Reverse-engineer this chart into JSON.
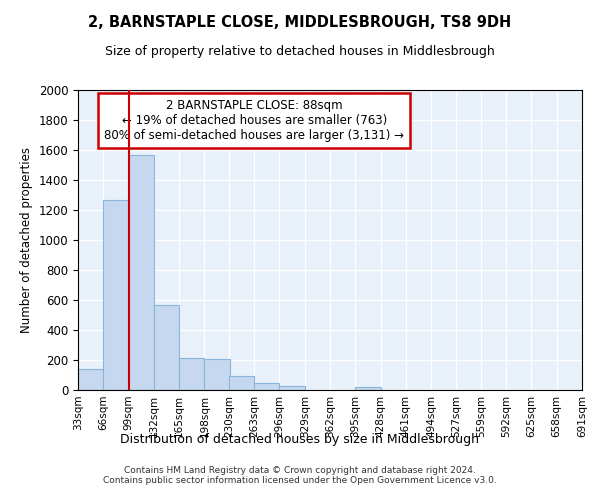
{
  "title": "2, BARNSTAPLE CLOSE, MIDDLESBROUGH, TS8 9DH",
  "subtitle": "Size of property relative to detached houses in Middlesbrough",
  "xlabel": "Distribution of detached houses by size in Middlesbrough",
  "ylabel": "Number of detached properties",
  "bar_color": "#c5d8f0",
  "bar_edge_color": "#8ab4d8",
  "background_color": "#e8f0fa",
  "grid_color": "#ffffff",
  "annotation_box_color": "#cc0000",
  "property_line_x": 99,
  "property_line_color": "#cc0000",
  "annotation_text": "2 BARNSTAPLE CLOSE: 88sqm\n← 19% of detached houses are smaller (763)\n80% of semi-detached houses are larger (3,131) →",
  "footer_text": "Contains HM Land Registry data © Crown copyright and database right 2024.\nContains public sector information licensed under the Open Government Licence v3.0.",
  "bin_edges": [
    33,
    66,
    99,
    132,
    165,
    198,
    230,
    263,
    296,
    329,
    362,
    395,
    428,
    461,
    494,
    527,
    559,
    592,
    625,
    658,
    691
  ],
  "bin_labels": [
    "33sqm",
    "66sqm",
    "99sqm",
    "132sqm",
    "165sqm",
    "198sqm",
    "230sqm",
    "263sqm",
    "296sqm",
    "329sqm",
    "362sqm",
    "395sqm",
    "428sqm",
    "461sqm",
    "494sqm",
    "527sqm",
    "559sqm",
    "592sqm",
    "625sqm",
    "658sqm",
    "691sqm"
  ],
  "counts": [
    140,
    1270,
    1570,
    570,
    215,
    210,
    95,
    50,
    30,
    0,
    0,
    20,
    0,
    0,
    0,
    0,
    0,
    0,
    0,
    0
  ],
  "ylim": [
    0,
    2000
  ],
  "yticks": [
    0,
    200,
    400,
    600,
    800,
    1000,
    1200,
    1400,
    1600,
    1800,
    2000
  ]
}
